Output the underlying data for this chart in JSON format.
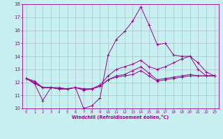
{
  "xlabel": "Windchill (Refroidissement éolien,°C)",
  "ylabel": "",
  "background_color": "#c8f0f0",
  "line_color": "#990099",
  "grid_color": "#a0a0c0",
  "xlim": [
    -0.5,
    23.5
  ],
  "ylim": [
    10,
    18
  ],
  "yticks": [
    10,
    11,
    12,
    13,
    14,
    15,
    16,
    17,
    18
  ],
  "xticks": [
    0,
    1,
    2,
    3,
    4,
    5,
    6,
    7,
    8,
    9,
    10,
    11,
    12,
    13,
    14,
    15,
    16,
    17,
    18,
    19,
    20,
    21,
    22,
    23
  ],
  "series": [
    [
      12.3,
      11.9,
      10.6,
      11.6,
      11.6,
      11.5,
      11.6,
      10.0,
      10.2,
      10.8,
      14.1,
      15.3,
      15.9,
      16.7,
      17.8,
      16.4,
      14.9,
      15.0,
      14.1,
      14.0,
      14.0,
      13.0,
      12.5,
      12.5
    ],
    [
      12.3,
      11.9,
      11.6,
      11.6,
      11.5,
      11.5,
      11.6,
      11.4,
      11.5,
      11.7,
      12.2,
      12.4,
      12.5,
      12.6,
      12.9,
      12.5,
      12.1,
      12.2,
      12.3,
      12.4,
      12.5,
      12.5,
      12.5,
      12.5
    ],
    [
      12.3,
      12.0,
      11.6,
      11.6,
      11.5,
      11.5,
      11.6,
      11.5,
      11.5,
      11.8,
      12.5,
      13.0,
      13.2,
      13.4,
      13.7,
      13.2,
      13.0,
      13.2,
      13.5,
      13.8,
      14.0,
      13.5,
      12.8,
      12.5
    ],
    [
      12.3,
      12.1,
      11.6,
      11.6,
      11.5,
      11.5,
      11.6,
      11.5,
      11.5,
      11.7,
      12.2,
      12.5,
      12.6,
      12.9,
      13.2,
      12.7,
      12.2,
      12.3,
      12.4,
      12.5,
      12.6,
      12.5,
      12.5,
      12.5
    ]
  ],
  "marker": "+"
}
